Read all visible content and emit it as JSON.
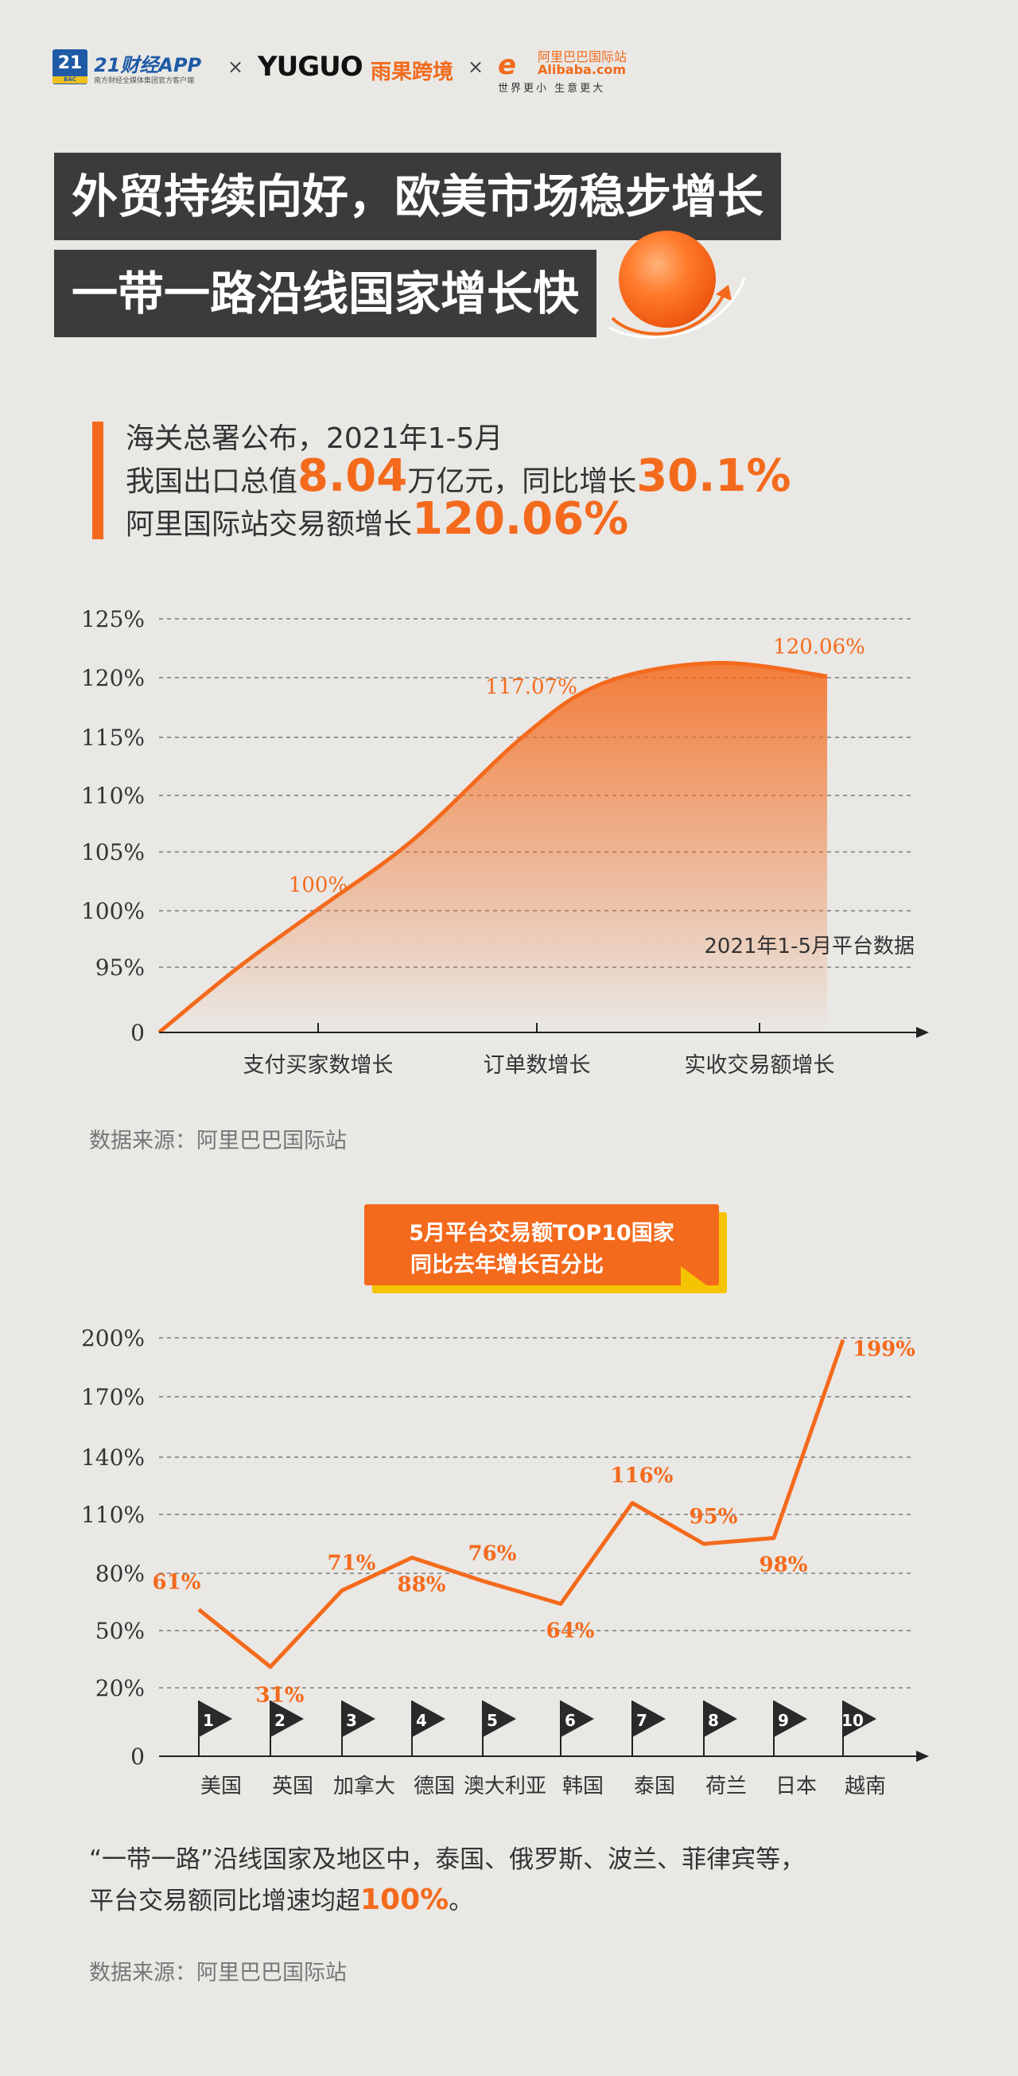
{
  "header": {
    "logo21_badge": "21",
    "logo21_badge_sub": "BAC",
    "logo21_text": "21财经APP",
    "logo21_sub": "南方财经全媒体集团官方客户端",
    "times": "×",
    "yuguo": "YUGUO",
    "yuguo_cn": "雨果跨境",
    "ali_icon": "e",
    "ali_cn": "阿里巴巴国际站",
    "ali_en": "Alibaba.com",
    "ali_slogan": "世界更小 生意更大"
  },
  "titles": {
    "line1": "外贸持续向好，欧美市场稳步增长",
    "line2": "一带一路沿线国家增长快"
  },
  "intro": {
    "line1": "海关总署公布，2021年1-5月",
    "line2_pre": "我国出口总值",
    "line2_num": "8.04",
    "line2_mid": "万亿元，同比增长",
    "line2_pct": "30.1%",
    "line3_pre": "阿里国际站交易额增长",
    "line3_pct": "120.06%"
  },
  "chart1_source": "数据来源：阿里巴巴国际站",
  "banner": {
    "line1": "5月平台交易额TOP10国家",
    "line2": "同比去年增长百分比"
  },
  "note": {
    "pre": "“一带一路”沿线国家及地区中，泰国、俄罗斯、波兰、菲律宾等，",
    "line2_pre": "平台交易额同比增速均超",
    "line2_accent": "100%",
    "line2_post": "。"
  },
  "chart2_source": "数据来源：阿里巴巴国际站",
  "colors": {
    "accent": "#f46a1c",
    "dark_box": "#3b3b3b",
    "yellow": "#f5c400",
    "background": "#e9e8e5",
    "brand_blue": "#1f5aa6"
  },
  "chart_data": [
    {
      "type": "area",
      "title": "",
      "xlabel": "",
      "ylabel": "",
      "y_ticks": [
        "0",
        "95%",
        "100%",
        "105%",
        "110%",
        "115%",
        "120%",
        "125%"
      ],
      "y_tick_values": [
        0,
        95,
        100,
        105,
        110,
        115,
        120,
        125
      ],
      "categories": [
        "支付买家数增长",
        "订单数增长",
        "实收交易额增长"
      ],
      "series": [
        {
          "values": [
            100,
            117.07,
            120.06
          ],
          "labels": [
            "100%",
            "117.07%",
            "120.06%"
          ]
        }
      ],
      "annotation": "2021年1-5月平台数据",
      "curve_shape_approx": [
        [
          0,
          0
        ],
        [
          0.5,
          95
        ],
        [
          1,
          100
        ],
        [
          1.6,
          106
        ],
        [
          2.3,
          115
        ],
        [
          2.8,
          119.5
        ],
        [
          3.5,
          121.2
        ],
        [
          4.2,
          120.06
        ]
      ],
      "grid": true,
      "grid_style": "dashed",
      "legend": "none"
    },
    {
      "type": "line",
      "title": "",
      "xlabel": "",
      "ylabel": "",
      "y_ticks": [
        "0",
        "20%",
        "50%",
        "80%",
        "110%",
        "140%",
        "170%",
        "200%"
      ],
      "y_tick_values": [
        0,
        20,
        50,
        80,
        110,
        140,
        170,
        200
      ],
      "categories": [
        "美国",
        "英国",
        "加拿大",
        "德国",
        "澳大利亚",
        "韩国",
        "泰国",
        "荷兰",
        "日本",
        "越南"
      ],
      "ranks": [
        "1",
        "2",
        "3",
        "4",
        "5",
        "6",
        "7",
        "8",
        "9",
        "10"
      ],
      "series": [
        {
          "values": [
            61,
            31,
            71,
            88,
            76,
            64,
            116,
            95,
            98,
            199
          ],
          "labels": [
            "61%",
            "31%",
            "71%",
            "88%",
            "76%",
            "64%",
            "116%",
            "95%",
            "98%",
            "199%"
          ]
        }
      ],
      "grid": true,
      "grid_style": "dashed",
      "legend": "none"
    }
  ]
}
